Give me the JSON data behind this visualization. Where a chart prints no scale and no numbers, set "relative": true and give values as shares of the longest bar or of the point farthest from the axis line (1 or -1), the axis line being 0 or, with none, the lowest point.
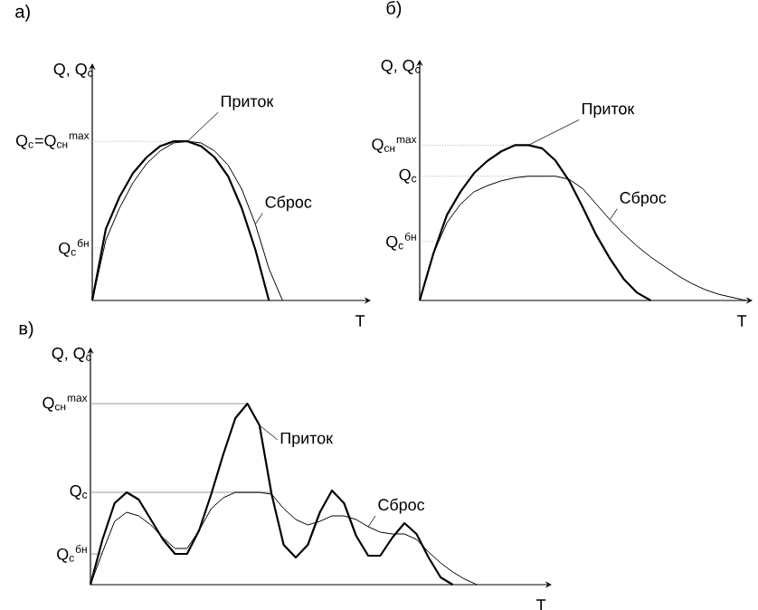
{
  "chart_data": [
    {
      "type": "line",
      "title": "а)",
      "xlabel": "T",
      "ylabel": "Q, Q$_{c}$",
      "relative": true,
      "categories": [
        null,
        null,
        null,
        null,
        null,
        null,
        null,
        null,
        null,
        null,
        null,
        null,
        null,
        null,
        null,
        null,
        null,
        null,
        null,
        null,
        null
      ],
      "series": [
        {
          "name": "Приток",
          "color": "#000000",
          "values": [
            0,
            0.45,
            0.65,
            0.8,
            0.9,
            0.97,
            1.0,
            1.0,
            0.97,
            0.9,
            0.78,
            0.58,
            0.32,
            0,
            null,
            null,
            null,
            null,
            null,
            null,
            null
          ]
        },
        {
          "name": "Сброс",
          "color": "#000000",
          "values": [
            0,
            0.38,
            0.58,
            0.74,
            0.86,
            0.94,
            0.99,
            1.0,
            0.99,
            0.94,
            0.85,
            0.7,
            0.48,
            0.2,
            0,
            null,
            null,
            null,
            null,
            null,
            null
          ]
        }
      ],
      "ref_lines": [
        {
          "axis": "y",
          "value": 1.0,
          "label": "Q$_{c}$=Q$_{сн}$$^{max}$",
          "line_style": "dotted"
        },
        {
          "axis": "y",
          "value": 0.33,
          "label": "Q$_{c}$$^{бн}$",
          "line_style": "dotted"
        }
      ]
    },
    {
      "type": "line",
      "title": "б)",
      "xlabel": "T",
      "ylabel": "Q, Q$_{c}$",
      "relative": true,
      "categories": [
        null,
        null,
        null,
        null,
        null,
        null,
        null,
        null,
        null,
        null,
        null,
        null,
        null,
        null,
        null,
        null,
        null,
        null,
        null,
        null,
        null,
        null,
        null,
        null,
        null
      ],
      "series": [
        {
          "name": "Приток",
          "color": "#000000",
          "values": [
            0,
            0.3,
            0.55,
            0.7,
            0.82,
            0.9,
            0.96,
            1.0,
            1.0,
            0.98,
            0.9,
            0.77,
            0.6,
            0.42,
            0.27,
            0.14,
            0.05,
            0,
            null,
            null,
            null,
            null,
            null,
            null,
            null
          ]
        },
        {
          "name": "Сброс",
          "color": "#000000",
          "values": [
            0,
            0.3,
            0.5,
            0.62,
            0.7,
            0.74,
            0.77,
            0.79,
            0.8,
            0.8,
            0.8,
            0.78,
            0.72,
            0.62,
            0.52,
            0.43,
            0.35,
            0.28,
            0.22,
            0.16,
            0.11,
            0.07,
            0.04,
            0.02,
            0
          ]
        }
      ],
      "ref_lines": [
        {
          "axis": "y",
          "value": 1.0,
          "label": "Q$_{сн}$$^{max}$",
          "line_style": "dotted"
        },
        {
          "axis": "y",
          "value": 0.8,
          "label": "Q$_{c}$",
          "line_style": "dotted"
        },
        {
          "axis": "y",
          "value": 0.38,
          "label": "Q$_{c}$$^{бн}$",
          "line_style": "dotted"
        }
      ]
    },
    {
      "type": "line",
      "title": "в)",
      "xlabel": "T",
      "ylabel": "Q, Q$_{c}$",
      "relative": true,
      "categories": [
        null,
        null,
        null,
        null,
        null,
        null,
        null,
        null,
        null,
        null,
        null,
        null,
        null,
        null,
        null,
        null,
        null,
        null,
        null,
        null,
        null,
        null,
        null,
        null,
        null,
        null,
        null,
        null,
        null,
        null,
        null,
        null,
        null
      ],
      "series": [
        {
          "name": "Приток",
          "color": "#000000",
          "values": [
            0,
            0.25,
            0.45,
            0.51,
            0.47,
            0.36,
            0.25,
            0.17,
            0.17,
            0.3,
            0.5,
            0.72,
            0.92,
            1.0,
            0.88,
            0.5,
            0.22,
            0.15,
            0.22,
            0.4,
            0.52,
            0.45,
            0.27,
            0.16,
            0.16,
            0.26,
            0.34,
            0.28,
            0.15,
            0.04,
            0,
            null,
            null
          ]
        },
        {
          "name": "Сброс",
          "color": "#000000",
          "values": [
            0,
            0.18,
            0.35,
            0.4,
            0.38,
            0.33,
            0.26,
            0.2,
            0.2,
            0.3,
            0.42,
            0.48,
            0.51,
            0.51,
            0.51,
            0.5,
            0.42,
            0.36,
            0.33,
            0.35,
            0.38,
            0.38,
            0.36,
            0.32,
            0.29,
            0.28,
            0.28,
            0.25,
            0.18,
            0.12,
            0.07,
            0.03,
            0
          ]
        }
      ],
      "ref_lines": [
        {
          "axis": "y",
          "value": 1.0,
          "label": "Q$_{сн}$$^{max}$",
          "line_style": "solid"
        },
        {
          "axis": "y",
          "value": 0.51,
          "label": "Q$_{c}$",
          "line_style": "solid"
        },
        {
          "axis": "y",
          "value": 0.17,
          "label": "Q$_{c}$$^{бн}$",
          "line_style": "solid"
        }
      ]
    }
  ]
}
